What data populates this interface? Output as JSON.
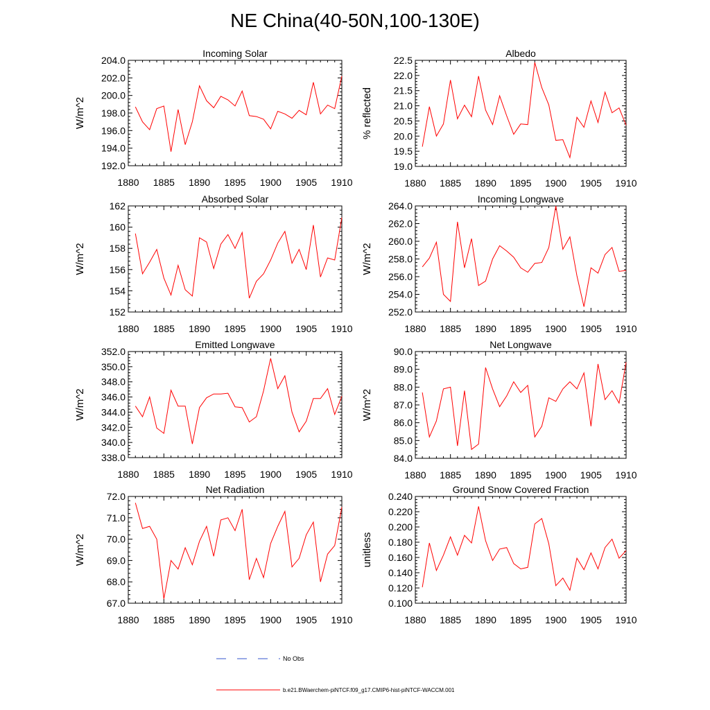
{
  "figure_title": "NE China(40-50N,100-130E)",
  "colors": {
    "model_line": "#ff0000",
    "obs_line": "#3355cc",
    "axis": "#000000"
  },
  "legend": [
    {
      "label": "No Obs",
      "style": "dashed",
      "color": "#3355cc"
    },
    {
      "label": "b.e21.BWaerchem-piNTCF.f09_g17.CMIP6-hist-piNTCF-WACCM.001",
      "style": "solid",
      "color": "#ff0000"
    }
  ],
  "chart_data": [
    {
      "type": "line",
      "title": "Incoming Solar",
      "xlabel": "",
      "ylabel": "W/m^2",
      "xlim": [
        1880,
        1910
      ],
      "ylim": [
        192.0,
        204.0
      ],
      "xticks": [
        1880,
        1885,
        1890,
        1895,
        1900,
        1905,
        1910
      ],
      "yticks": [
        "192.0",
        "194.0",
        "196.0",
        "198.0",
        "200.0",
        "202.0",
        "204.0"
      ],
      "x": [
        1881,
        1882,
        1883,
        1884,
        1885,
        1886,
        1887,
        1888,
        1889,
        1890,
        1891,
        1892,
        1893,
        1894,
        1895,
        1896,
        1897,
        1898,
        1899,
        1900,
        1901,
        1902,
        1903,
        1904,
        1905,
        1906,
        1907,
        1908,
        1909,
        1910
      ],
      "series": [
        {
          "name": "b.e21.BWaerchem-piNTCF.f09_g17.CMIP6-hist-piNTCF-WACCM.001",
          "values": [
            198.7,
            197.0,
            196.1,
            198.5,
            198.8,
            193.6,
            198.4,
            194.4,
            197.0,
            201.1,
            199.4,
            198.6,
            199.9,
            199.5,
            198.8,
            200.5,
            197.7,
            197.6,
            197.3,
            196.2,
            198.2,
            197.9,
            197.4,
            198.3,
            197.8,
            201.5,
            197.9,
            198.9,
            198.5,
            202.2
          ]
        }
      ]
    },
    {
      "type": "line",
      "title": "Albedo",
      "xlabel": "",
      "ylabel": "% reflected",
      "xlim": [
        1880,
        1910
      ],
      "ylim": [
        19.0,
        22.5
      ],
      "xticks": [
        1880,
        1885,
        1890,
        1895,
        1900,
        1905,
        1910
      ],
      "yticks": [
        "19.0",
        "19.5",
        "20.0",
        "20.5",
        "21.0",
        "21.5",
        "22.0",
        "22.5"
      ],
      "x": [
        1881,
        1882,
        1883,
        1884,
        1885,
        1886,
        1887,
        1888,
        1889,
        1890,
        1891,
        1892,
        1893,
        1894,
        1895,
        1896,
        1897,
        1898,
        1899,
        1900,
        1901,
        1902,
        1903,
        1904,
        1905,
        1906,
        1907,
        1908,
        1909,
        1910
      ],
      "series": [
        {
          "name": "b.e21.BWaerchem-piNTCF.f09_g17.CMIP6-hist-piNTCF-WACCM.001",
          "values": [
            19.65,
            20.97,
            20.0,
            20.4,
            21.85,
            20.57,
            21.02,
            20.64,
            21.98,
            20.86,
            20.38,
            21.33,
            20.67,
            20.06,
            20.4,
            20.38,
            22.43,
            21.6,
            21.03,
            19.86,
            19.88,
            19.29,
            20.62,
            20.29,
            21.16,
            20.45,
            21.45,
            20.77,
            20.93,
            20.36
          ]
        }
      ]
    },
    {
      "type": "line",
      "title": "Absorbed Solar",
      "xlabel": "",
      "ylabel": "W/m^2",
      "xlim": [
        1880,
        1910
      ],
      "ylim": [
        152,
        162
      ],
      "xticks": [
        1880,
        1885,
        1890,
        1895,
        1900,
        1905,
        1910
      ],
      "yticks": [
        "152",
        "154",
        "156",
        "158",
        "160",
        "162"
      ],
      "x": [
        1881,
        1882,
        1883,
        1884,
        1885,
        1886,
        1887,
        1888,
        1889,
        1890,
        1891,
        1892,
        1893,
        1894,
        1895,
        1896,
        1897,
        1898,
        1899,
        1900,
        1901,
        1902,
        1903,
        1904,
        1905,
        1906,
        1907,
        1908,
        1909,
        1910
      ],
      "series": [
        {
          "name": "b.e21.BWaerchem-piNTCF.f09_g17.CMIP6-hist-piNTCF-WACCM.001",
          "values": [
            159.4,
            155.6,
            156.7,
            157.9,
            155.2,
            153.6,
            156.4,
            154.1,
            153.5,
            159.0,
            158.6,
            156.1,
            158.4,
            159.3,
            158.0,
            159.5,
            153.3,
            154.9,
            155.6,
            156.9,
            158.5,
            159.6,
            156.6,
            157.9,
            156.0,
            160.2,
            155.3,
            157.1,
            156.9,
            160.9
          ]
        }
      ]
    },
    {
      "type": "line",
      "title": "Incoming Longwave",
      "xlabel": "",
      "ylabel": "W/m^2",
      "xlim": [
        1880,
        1910
      ],
      "ylim": [
        252.0,
        264.0
      ],
      "xticks": [
        1880,
        1885,
        1890,
        1895,
        1900,
        1905,
        1910
      ],
      "yticks": [
        "252.0",
        "254.0",
        "256.0",
        "258.0",
        "260.0",
        "262.0",
        "264.0"
      ],
      "x": [
        1881,
        1882,
        1883,
        1884,
        1885,
        1886,
        1887,
        1888,
        1889,
        1890,
        1891,
        1892,
        1893,
        1894,
        1895,
        1896,
        1897,
        1898,
        1899,
        1900,
        1901,
        1902,
        1903,
        1904,
        1905,
        1906,
        1907,
        1908,
        1909,
        1910
      ],
      "series": [
        {
          "name": "b.e21.BWaerchem-piNTCF.f09_g17.CMIP6-hist-piNTCF-WACCM.001",
          "values": [
            257.1,
            258.1,
            259.9,
            254.0,
            253.2,
            262.2,
            257.0,
            260.3,
            255.0,
            255.5,
            258.0,
            259.5,
            258.9,
            258.2,
            257.0,
            256.5,
            257.5,
            257.6,
            259.3,
            264.0,
            259.1,
            260.5,
            256.1,
            252.6,
            257.0,
            256.4,
            258.5,
            259.3,
            256.6,
            256.7
          ]
        }
      ]
    },
    {
      "type": "line",
      "title": "Emitted Longwave",
      "xlabel": "",
      "ylabel": "W/m^2",
      "xlim": [
        1880,
        1910
      ],
      "ylim": [
        338.0,
        352.0
      ],
      "xticks": [
        1880,
        1885,
        1890,
        1895,
        1900,
        1905,
        1910
      ],
      "yticks": [
        "338.0",
        "340.0",
        "342.0",
        "344.0",
        "346.0",
        "348.0",
        "350.0",
        "352.0"
      ],
      "x": [
        1881,
        1882,
        1883,
        1884,
        1885,
        1886,
        1887,
        1888,
        1889,
        1890,
        1891,
        1892,
        1893,
        1894,
        1895,
        1896,
        1897,
        1898,
        1899,
        1900,
        1901,
        1902,
        1903,
        1904,
        1905,
        1906,
        1907,
        1908,
        1909,
        1910
      ],
      "series": [
        {
          "name": "b.e21.BWaerchem-piNTCF.f09_g17.CMIP6-hist-piNTCF-WACCM.001",
          "values": [
            344.8,
            343.4,
            346.0,
            341.9,
            341.2,
            346.9,
            344.8,
            344.8,
            339.8,
            344.6,
            345.9,
            346.4,
            346.4,
            346.5,
            344.7,
            344.6,
            342.7,
            343.4,
            346.8,
            351.1,
            347.1,
            348.8,
            344.0,
            341.4,
            342.8,
            345.8,
            345.8,
            347.1,
            343.7,
            346.1
          ]
        }
      ]
    },
    {
      "type": "line",
      "title": "Net Longwave",
      "xlabel": "",
      "ylabel": "W/m^2",
      "xlim": [
        1880,
        1910
      ],
      "ylim": [
        84.0,
        90.0
      ],
      "xticks": [
        1880,
        1885,
        1890,
        1895,
        1900,
        1905,
        1910
      ],
      "yticks": [
        "84.0",
        "85.0",
        "86.0",
        "87.0",
        "88.0",
        "89.0",
        "90.0"
      ],
      "x": [
        1881,
        1882,
        1883,
        1884,
        1885,
        1886,
        1887,
        1888,
        1889,
        1890,
        1891,
        1892,
        1893,
        1894,
        1895,
        1896,
        1897,
        1898,
        1899,
        1900,
        1901,
        1902,
        1903,
        1904,
        1905,
        1906,
        1907,
        1908,
        1909,
        1910
      ],
      "series": [
        {
          "name": "b.e21.BWaerchem-piNTCF.f09_g17.CMIP6-hist-piNTCF-WACCM.001",
          "values": [
            87.7,
            85.2,
            86.1,
            87.9,
            88.0,
            84.7,
            87.8,
            84.5,
            84.8,
            89.1,
            87.9,
            86.9,
            87.5,
            88.3,
            87.7,
            88.1,
            85.2,
            85.8,
            87.4,
            87.2,
            87.9,
            88.3,
            87.9,
            88.8,
            85.8,
            89.3,
            87.3,
            87.8,
            87.1,
            89.4
          ]
        }
      ]
    },
    {
      "type": "line",
      "title": "Net Radiation",
      "xlabel": "",
      "ylabel": "W/m^2",
      "xlim": [
        1880,
        1910
      ],
      "ylim": [
        67.0,
        72.0
      ],
      "xticks": [
        1880,
        1885,
        1890,
        1895,
        1900,
        1905,
        1910
      ],
      "yticks": [
        "67.0",
        "68.0",
        "69.0",
        "70.0",
        "71.0",
        "72.0"
      ],
      "x": [
        1881,
        1882,
        1883,
        1884,
        1885,
        1886,
        1887,
        1888,
        1889,
        1890,
        1891,
        1892,
        1893,
        1894,
        1895,
        1896,
        1897,
        1898,
        1899,
        1900,
        1901,
        1902,
        1903,
        1904,
        1905,
        1906,
        1907,
        1908,
        1909,
        1910
      ],
      "series": [
        {
          "name": "b.e21.BWaerchem-piNTCF.f09_g17.CMIP6-hist-piNTCF-WACCM.001",
          "values": [
            71.7,
            70.5,
            70.6,
            70.0,
            67.2,
            69.0,
            68.6,
            69.6,
            68.8,
            69.9,
            70.6,
            69.2,
            70.9,
            71.0,
            70.4,
            71.4,
            68.1,
            69.1,
            68.2,
            69.8,
            70.6,
            71.3,
            68.7,
            69.1,
            70.2,
            70.8,
            68.0,
            69.3,
            69.7,
            71.5
          ]
        }
      ]
    },
    {
      "type": "line",
      "title": "Ground Snow Covered Fraction",
      "xlabel": "",
      "ylabel": "unitless",
      "xlim": [
        1880,
        1910
      ],
      "ylim": [
        0.1,
        0.24
      ],
      "xticks": [
        1880,
        1885,
        1890,
        1895,
        1900,
        1905,
        1910
      ],
      "yticks": [
        "0.100",
        "0.120",
        "0.140",
        "0.160",
        "0.180",
        "0.200",
        "0.220",
        "0.240"
      ],
      "x": [
        1881,
        1882,
        1883,
        1884,
        1885,
        1886,
        1887,
        1888,
        1889,
        1890,
        1891,
        1892,
        1893,
        1894,
        1895,
        1896,
        1897,
        1898,
        1899,
        1900,
        1901,
        1902,
        1903,
        1904,
        1905,
        1906,
        1907,
        1908,
        1909,
        1910
      ],
      "series": [
        {
          "name": "b.e21.BWaerchem-piNTCF.f09_g17.CMIP6-hist-piNTCF-WACCM.001",
          "values": [
            0.121,
            0.179,
            0.143,
            0.163,
            0.187,
            0.163,
            0.189,
            0.179,
            0.227,
            0.182,
            0.156,
            0.171,
            0.173,
            0.152,
            0.145,
            0.147,
            0.204,
            0.211,
            0.178,
            0.123,
            0.133,
            0.117,
            0.159,
            0.144,
            0.166,
            0.145,
            0.173,
            0.184,
            0.159,
            0.169
          ]
        }
      ]
    }
  ]
}
